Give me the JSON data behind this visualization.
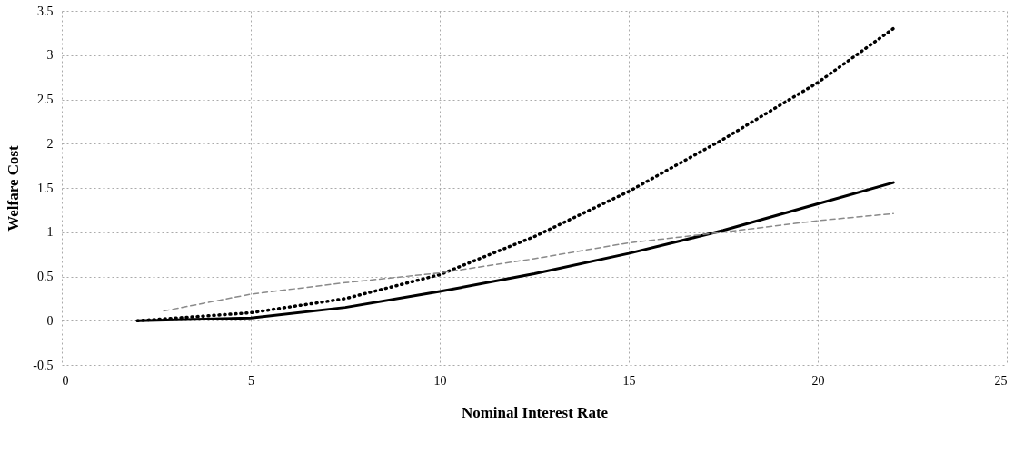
{
  "chart_data": {
    "type": "line",
    "xlabel": "Nominal Interest Rate",
    "ylabel": "Welfare Cost",
    "xlim": [
      0,
      25
    ],
    "xticks": [
      0,
      5,
      10,
      15,
      20,
      25
    ],
    "ylim": [
      -0.5,
      3.5
    ],
    "yticks": [
      -0.5,
      0,
      0.5,
      1,
      1.5,
      2,
      2.5,
      3,
      3.5
    ],
    "grid": true,
    "marker": "none",
    "series": [
      {
        "color": "#000000",
        "line_style": "solid",
        "x": [
          2,
          5,
          7.5,
          10,
          12.5,
          15,
          17.5,
          20,
          22
        ],
        "values": [
          0,
          0.03,
          0.15,
          0.33,
          0.53,
          0.76,
          1.02,
          1.32,
          1.56
        ]
      },
      {
        "color": "#000000",
        "line_style": "dotted",
        "x": [
          2,
          5,
          7.5,
          10,
          12.5,
          15,
          17.5,
          20,
          22
        ],
        "values": [
          0,
          0.09,
          0.25,
          0.52,
          0.95,
          1.46,
          2.05,
          2.69,
          3.3
        ]
      },
      {
        "color": "#8a8a8a",
        "line_style": "dashed",
        "x": [
          2.7,
          5,
          7.5,
          10,
          12.5,
          15,
          17.5,
          20,
          22
        ],
        "values": [
          0.11,
          0.3,
          0.43,
          0.54,
          0.7,
          0.88,
          1.0,
          1.13,
          1.21
        ]
      }
    ]
  }
}
